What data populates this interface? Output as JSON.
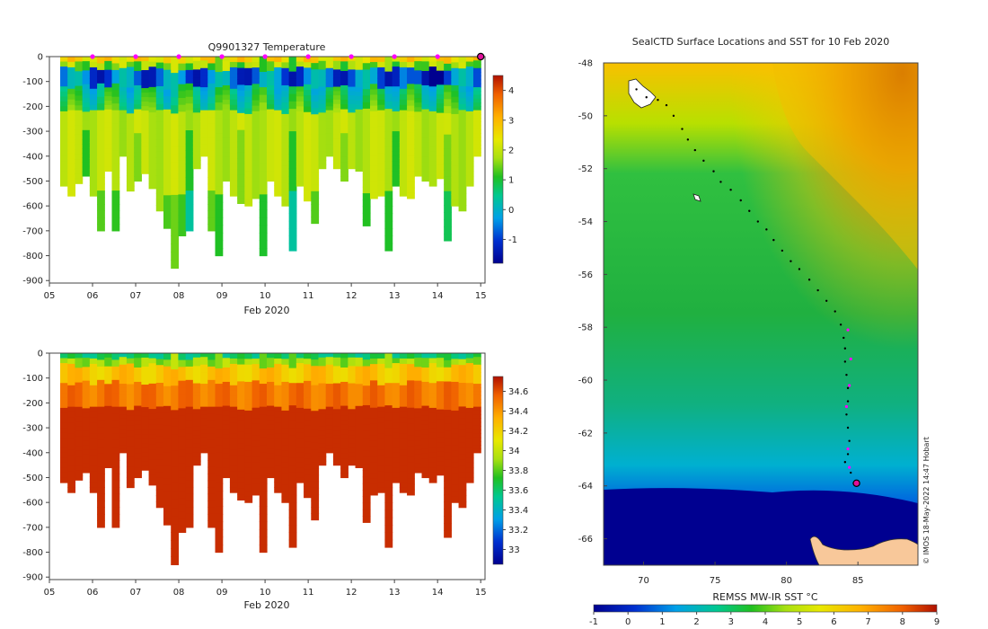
{
  "chart_data": [
    {
      "type": "heatmap",
      "title": "Q9901327  Temperature",
      "xlabel": "Feb 2020",
      "ylabel": "",
      "x_tick_labels": [
        "05",
        "06",
        "07",
        "08",
        "09",
        "10",
        "11",
        "12",
        "13",
        "14",
        "15"
      ],
      "x_ticks": [
        5,
        6,
        7,
        8,
        9,
        10,
        11,
        12,
        13,
        14,
        15
      ],
      "xlim": [
        5,
        15.1
      ],
      "y_tick_labels": [
        "0",
        "-100",
        "-200",
        "-300",
        "-400",
        "-500",
        "-600",
        "-700",
        "-800",
        "-900"
      ],
      "y_ticks": [
        0,
        -100,
        -200,
        -300,
        -400,
        -500,
        -600,
        -700,
        -800,
        -900
      ],
      "ylim": [
        -910,
        0
      ],
      "colorbar": {
        "ticks": [
          -1,
          0,
          1,
          2,
          3,
          4
        ],
        "tick_labels": [
          "-1",
          "0",
          "1",
          "2",
          "3",
          "4"
        ],
        "range": [
          -1.8,
          4.5
        ]
      },
      "profile_depths_m": [
        520,
        560,
        510,
        480,
        560,
        700,
        460,
        700,
        400,
        540,
        500,
        470,
        530,
        620,
        690,
        850,
        720,
        700,
        450,
        400,
        700,
        800,
        500,
        560,
        590,
        600,
        570,
        800,
        500,
        560,
        600,
        780,
        520,
        580,
        670,
        450,
        400,
        450,
        500,
        450,
        460,
        680,
        570,
        560,
        780,
        520,
        560,
        570,
        480,
        500,
        520,
        490,
        740,
        600,
        620,
        520,
        400
      ]
    },
    {
      "type": "heatmap",
      "title": "",
      "xlabel": "Feb 2020",
      "ylabel": "",
      "x_tick_labels": [
        "05",
        "06",
        "07",
        "08",
        "09",
        "10",
        "11",
        "12",
        "13",
        "14",
        "15"
      ],
      "x_ticks": [
        5,
        6,
        7,
        8,
        9,
        10,
        11,
        12,
        13,
        14,
        15
      ],
      "xlim": [
        5,
        15.1
      ],
      "y_tick_labels": [
        "0",
        "-100",
        "-200",
        "-300",
        "-400",
        "-500",
        "-600",
        "-700",
        "-800",
        "-900"
      ],
      "y_ticks": [
        0,
        -100,
        -200,
        -300,
        -400,
        -500,
        -600,
        -700,
        -800,
        -900
      ],
      "ylim": [
        -910,
        0
      ],
      "colorbar": {
        "ticks": [
          33,
          33.2,
          33.4,
          33.6,
          33.8,
          34,
          34.2,
          34.4,
          34.6
        ],
        "tick_labels": [
          "33",
          "33.2",
          "33.4",
          "33.6",
          "33.8",
          "34",
          "34.2",
          "34.4",
          "34.6"
        ],
        "range": [
          32.85,
          34.75
        ]
      }
    },
    {
      "type": "heatmap",
      "title": "SealCTD Surface Locations and SST for 10 Feb 2020",
      "xlabel": "",
      "ylabel": "",
      "x_tick_labels": [
        "70",
        "75",
        "80",
        "85"
      ],
      "x_ticks": [
        70,
        75,
        80,
        85
      ],
      "xlim": [
        67.2,
        89.2
      ],
      "y_tick_labels": [
        "-48",
        "-50",
        "-52",
        "-54",
        "-56",
        "-58",
        "-60",
        "-62",
        "-64",
        "-66"
      ],
      "y_ticks": [
        -48,
        -50,
        -52,
        -54,
        -56,
        -58,
        -60,
        -62,
        -64,
        -66
      ],
      "ylim": [
        -67,
        -48
      ],
      "colorbar": {
        "label": "REMSS MW-IR SST °C",
        "ticks": [
          -1,
          0,
          1,
          2,
          3,
          4,
          5,
          6,
          7,
          8,
          9
        ],
        "tick_labels": [
          "-1",
          "0",
          "1",
          "2",
          "3",
          "4",
          "5",
          "6",
          "7",
          "8",
          "9"
        ],
        "range": [
          -1,
          9
        ]
      },
      "track_points": [
        [
          69.5,
          -49.0
        ],
        [
          70.2,
          -49.3
        ],
        [
          71.0,
          -49.4
        ],
        [
          71.6,
          -49.6
        ],
        [
          72.1,
          -50.0
        ],
        [
          72.7,
          -50.5
        ],
        [
          73.1,
          -50.9
        ],
        [
          73.6,
          -51.3
        ],
        [
          74.2,
          -51.7
        ],
        [
          74.9,
          -52.1
        ],
        [
          75.4,
          -52.5
        ],
        [
          76.1,
          -52.8
        ],
        [
          76.8,
          -53.2
        ],
        [
          77.4,
          -53.6
        ],
        [
          78.0,
          -54.0
        ],
        [
          78.6,
          -54.3
        ],
        [
          79.1,
          -54.7
        ],
        [
          79.7,
          -55.1
        ],
        [
          80.3,
          -55.5
        ],
        [
          80.9,
          -55.8
        ],
        [
          81.6,
          -56.2
        ],
        [
          82.2,
          -56.6
        ],
        [
          82.8,
          -57.0
        ],
        [
          83.4,
          -57.4
        ],
        [
          83.8,
          -57.9
        ],
        [
          84.0,
          -58.4
        ],
        [
          84.1,
          -58.8
        ],
        [
          84.1,
          -59.3
        ],
        [
          84.2,
          -59.8
        ],
        [
          84.3,
          -60.3
        ],
        [
          84.3,
          -60.8
        ],
        [
          84.2,
          -61.3
        ],
        [
          84.3,
          -61.8
        ],
        [
          84.4,
          -62.3
        ],
        [
          84.3,
          -62.8
        ],
        [
          84.1,
          -63.1
        ],
        [
          84.5,
          -63.5
        ],
        [
          84.7,
          -63.9
        ]
      ],
      "magenta_points": [
        [
          84.3,
          -58.1
        ],
        [
          84.5,
          -59.2
        ],
        [
          84.4,
          -60.2
        ],
        [
          84.2,
          -61.0
        ],
        [
          84.3,
          -62.6
        ],
        [
          84.4,
          -63.3
        ]
      ],
      "current_position": [
        84.9,
        -63.9
      ]
    }
  ],
  "credit": "© IMOS 18-May-2022 14:47 Hobart"
}
